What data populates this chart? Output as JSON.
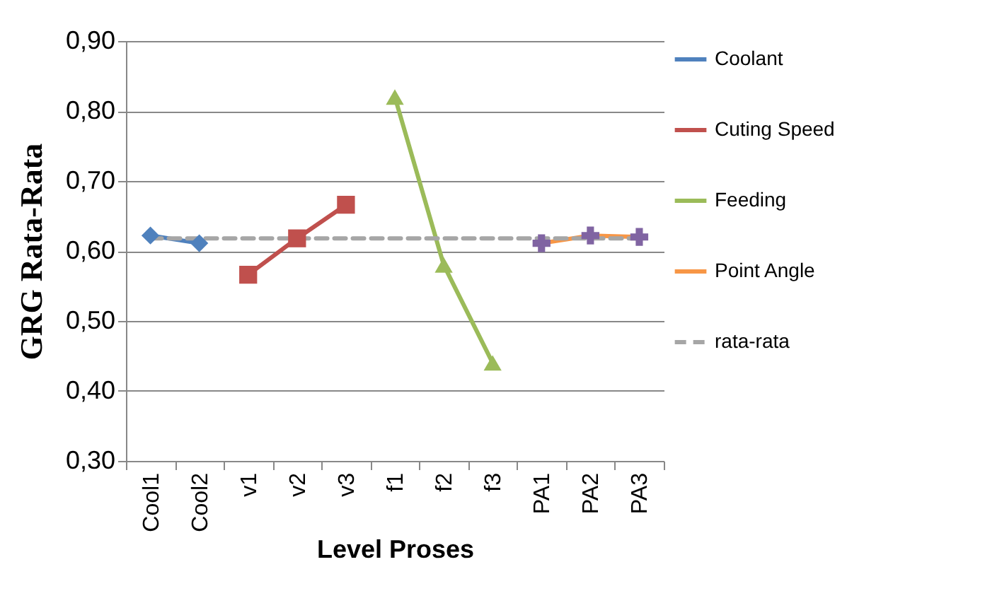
{
  "chart_data": {
    "type": "line",
    "xlabel": "Level Proses",
    "ylabel": "GRG Rata-Rata",
    "categories": [
      "Cool1",
      "Cool2",
      "v1",
      "v2",
      "v3",
      "f1",
      "f2",
      "f3",
      "PA1",
      "PA2",
      "PA3"
    ],
    "ylim": [
      0.3,
      0.9
    ],
    "yticks": [
      {
        "value": 0.3,
        "label": "0,30"
      },
      {
        "value": 0.4,
        "label": "0,40"
      },
      {
        "value": 0.5,
        "label": "0,50"
      },
      {
        "value": 0.6,
        "label": "0,60"
      },
      {
        "value": 0.7,
        "label": "0,70"
      },
      {
        "value": 0.8,
        "label": "0,80"
      },
      {
        "value": 0.9,
        "label": "0,90"
      }
    ],
    "grid": "y",
    "legend": "right",
    "series": [
      {
        "name": "Coolant",
        "color": "#4f81bd",
        "marker": "diamond",
        "values": [
          0.622,
          0.611,
          null,
          null,
          null,
          null,
          null,
          null,
          null,
          null,
          null
        ]
      },
      {
        "name": "Cuting Speed",
        "color": "#c0504d",
        "marker": "square",
        "values": [
          null,
          null,
          0.566,
          0.618,
          0.666,
          null,
          null,
          null,
          null,
          null,
          null
        ]
      },
      {
        "name": "Feeding",
        "color": "#9bbb59",
        "marker": "triangle",
        "values": [
          null,
          null,
          null,
          null,
          null,
          0.82,
          0.58,
          0.44,
          null,
          null,
          null
        ]
      },
      {
        "name": "Point Angle",
        "color": "#f79646",
        "marker": "cross",
        "colors": [
          null,
          null,
          null,
          null,
          null,
          null,
          null,
          null,
          "#8064a2",
          "#8064a2",
          "#8064a2"
        ],
        "values": [
          null,
          null,
          null,
          null,
          null,
          null,
          null,
          null,
          0.611,
          0.622,
          0.62
        ]
      },
      {
        "name": "rata-rata",
        "color": "#a6a6a6",
        "marker": "none",
        "line_style": "dashed",
        "values": [
          0.618,
          0.618,
          0.618,
          0.618,
          0.618,
          0.618,
          0.618,
          0.618,
          0.618,
          0.618,
          0.618
        ]
      }
    ]
  }
}
